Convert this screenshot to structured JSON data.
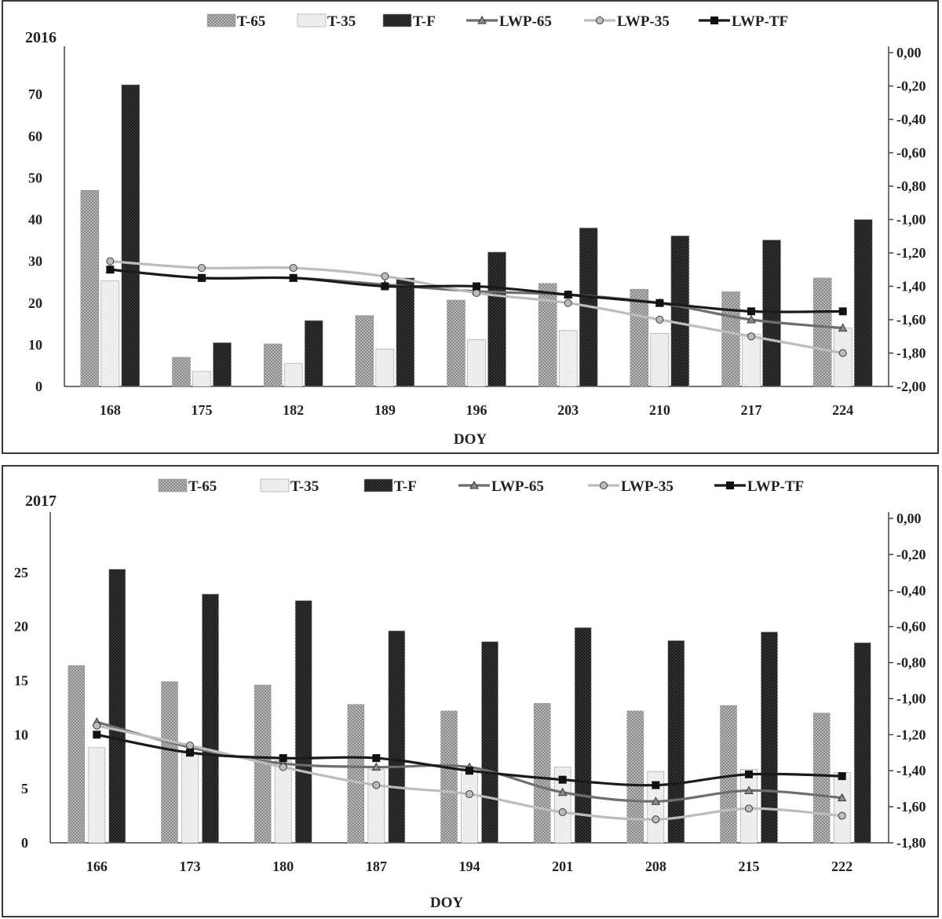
{
  "chart_data": [
    {
      "type": "bar",
      "year_label": "2016",
      "xlabel": "DOY",
      "categories": [
        "168",
        "175",
        "182",
        "189",
        "196",
        "203",
        "210",
        "217",
        "224"
      ],
      "y_left": {
        "min": 0,
        "max": 80,
        "ticks": [
          0,
          10,
          20,
          30,
          40,
          50,
          60,
          70
        ],
        "tick_labels": [
          "0",
          "10",
          "20",
          "30",
          "40",
          "50",
          "60",
          "70"
        ]
      },
      "y_right": {
        "min": -2.0,
        "max": 0.0,
        "ticks": [
          0,
          -0.2,
          -0.4,
          -0.6,
          -0.8,
          -1.0,
          -1.2,
          -1.4,
          -1.6,
          -1.8,
          -2.0
        ],
        "tick_labels": [
          "0,00",
          "-0,20",
          "-0,40",
          "-0,60",
          "-0,80",
          "-1,00",
          "-1,20",
          "-1,40",
          "-1,60",
          "-1,80",
          "-2,00"
        ]
      },
      "bar_series": [
        {
          "name": "T-65",
          "values": [
            47,
            7,
            10.2,
            17,
            20.7,
            24.7,
            23.3,
            22.7,
            26
          ],
          "pattern": "pat-t65"
        },
        {
          "name": "T-35",
          "values": [
            25.3,
            3.6,
            5.5,
            9,
            11.2,
            13.4,
            12.7,
            12.5,
            14
          ],
          "pattern": "pat-t35"
        },
        {
          "name": "T-F",
          "values": [
            72.3,
            10.5,
            15.8,
            26,
            32.2,
            38,
            36.1,
            35.1,
            40
          ],
          "pattern": "pat-tf"
        }
      ],
      "line_series": [
        {
          "name": "LWP-65",
          "values": [
            -1.3,
            -1.35,
            -1.35,
            -1.39,
            -1.43,
            -1.45,
            -1.5,
            -1.6,
            -1.65
          ],
          "color": "#6e6e6e",
          "marker": "triangle"
        },
        {
          "name": "LWP-35",
          "values": [
            -1.25,
            -1.29,
            -1.29,
            -1.34,
            -1.44,
            -1.5,
            -1.6,
            -1.7,
            -1.8
          ],
          "color": "#bdbdbd",
          "marker": "circle"
        },
        {
          "name": "LWP-TF",
          "values": [
            -1.3,
            -1.35,
            -1.35,
            -1.4,
            -1.4,
            -1.45,
            -1.5,
            -1.55,
            -1.55
          ],
          "color": "#1a1a1a",
          "marker": "square"
        }
      ],
      "legend_position": "top"
    },
    {
      "type": "bar",
      "year_label": "2017",
      "xlabel": "DOY",
      "categories": [
        "166",
        "173",
        "180",
        "187",
        "194",
        "201",
        "208",
        "215",
        "222"
      ],
      "y_left": {
        "min": 0,
        "max": 30,
        "ticks": [
          0,
          5,
          10,
          15,
          20,
          25
        ],
        "tick_labels": [
          "0",
          "5",
          "10",
          "15",
          "20",
          "25"
        ]
      },
      "y_right": {
        "min": -1.8,
        "max": 0.0,
        "ticks": [
          0,
          -0.2,
          -0.4,
          -0.6,
          -0.8,
          -1.0,
          -1.2,
          -1.4,
          -1.6,
          -1.8
        ],
        "tick_labels": [
          "0,00",
          "-0,20",
          "-0,40",
          "-0,60",
          "-0,80",
          "-1,00",
          "-1,20",
          "-1,40",
          "-1,60",
          "-1,80"
        ]
      },
      "bar_series": [
        {
          "name": "T-65",
          "values": [
            16.4,
            14.9,
            14.6,
            12.8,
            12.2,
            12.9,
            12.2,
            12.7,
            12
          ],
          "pattern": "pat-t65"
        },
        {
          "name": "T-35",
          "values": [
            8.8,
            8.4,
            7.6,
            6.8,
            6.9,
            7,
            6.6,
            6.8,
            6.5
          ],
          "pattern": "pat-t35"
        },
        {
          "name": "T-F",
          "values": [
            25.3,
            23,
            22.4,
            19.6,
            18.6,
            19.9,
            18.7,
            19.5,
            18.5
          ],
          "pattern": "pat-tf"
        }
      ],
      "line_series": [
        {
          "name": "LWP-65",
          "values": [
            -1.13,
            -1.27,
            -1.36,
            -1.38,
            -1.38,
            -1.52,
            -1.57,
            -1.51,
            -1.55
          ],
          "color": "#6e6e6e",
          "marker": "triangle"
        },
        {
          "name": "LWP-35",
          "values": [
            -1.15,
            -1.26,
            -1.38,
            -1.48,
            -1.53,
            -1.63,
            -1.67,
            -1.61,
            -1.65
          ],
          "color": "#bdbdbd",
          "marker": "circle"
        },
        {
          "name": "LWP-TF",
          "values": [
            -1.2,
            -1.3,
            -1.33,
            -1.33,
            -1.4,
            -1.45,
            -1.48,
            -1.42,
            -1.43
          ],
          "color": "#1a1a1a",
          "marker": "square"
        }
      ],
      "legend_position": "top"
    }
  ]
}
